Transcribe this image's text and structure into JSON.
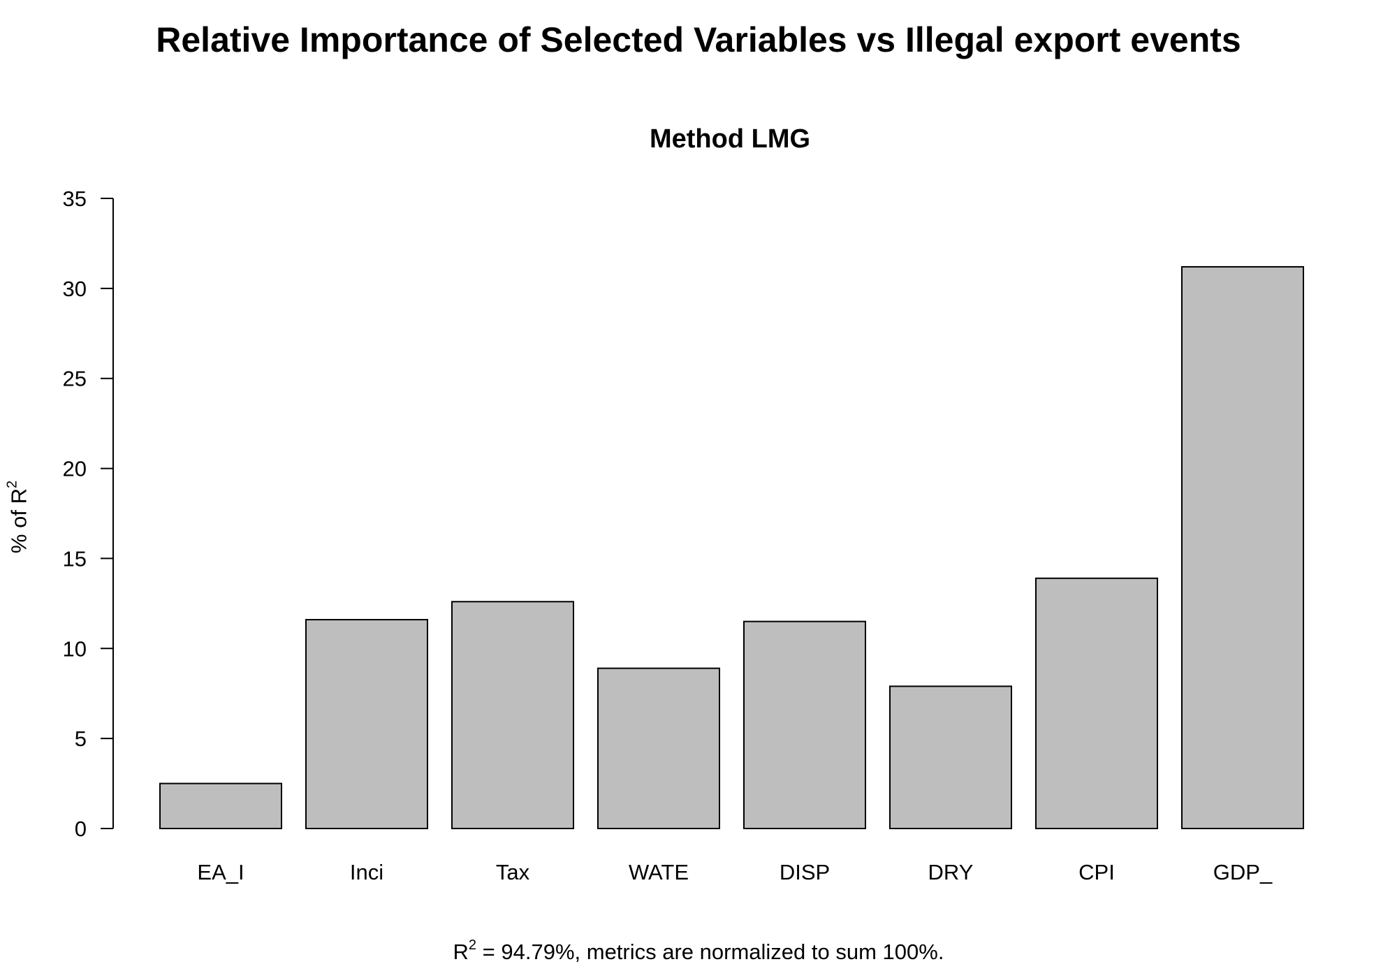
{
  "chart_data": {
    "type": "bar",
    "title": "Relative Importance of Selected Variables vs Illegal export events",
    "subtitle": "Method LMG",
    "categories": [
      "EA_I",
      "Inci",
      "Tax",
      "WATE",
      "DISP",
      "DRY",
      "CPI",
      "GDP_"
    ],
    "values": [
      2.5,
      11.6,
      12.6,
      8.9,
      11.5,
      7.9,
      13.9,
      31.2
    ],
    "ylabel_main": "% of R",
    "ylabel_sup": "2",
    "ylim": [
      0,
      35
    ],
    "yticks": [
      0,
      5,
      10,
      15,
      20,
      25,
      30,
      35
    ],
    "grid": false,
    "bar_color": "#bebebe",
    "footer_main": "R",
    "footer_sup": "2",
    "footer_rest": " = 94.79%, metrics are normalized to sum 100%."
  }
}
